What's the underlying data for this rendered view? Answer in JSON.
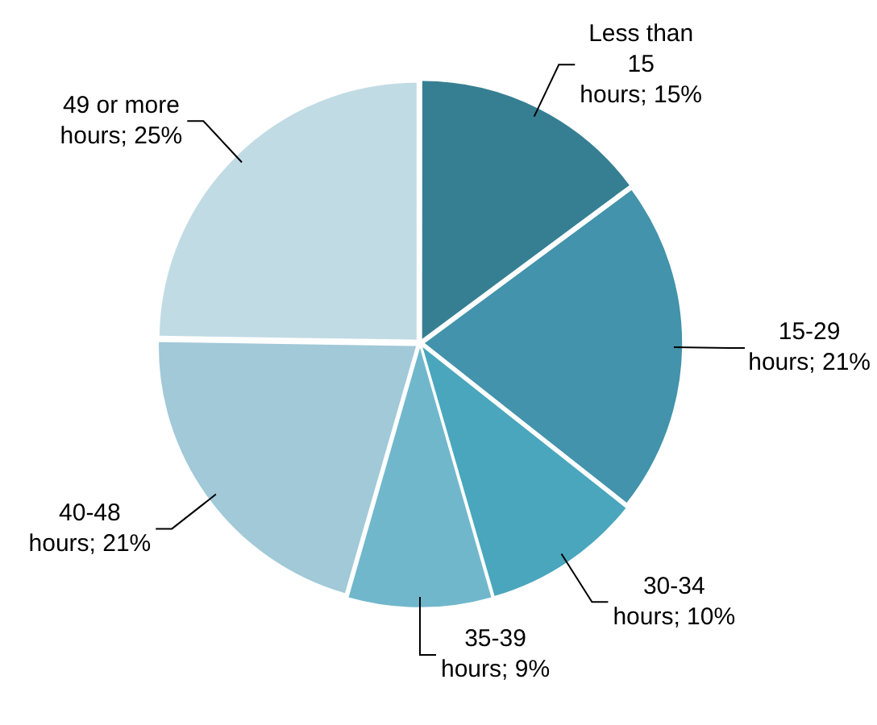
{
  "chart_data": {
    "type": "pie",
    "categories": [
      "Less than 15 hours",
      "15-29 hours",
      "30-34 hours",
      "35-39 hours",
      "40-48 hours",
      "49 or more hours"
    ],
    "values": [
      15,
      21,
      10,
      9,
      21,
      25
    ],
    "value_labels": [
      "15%",
      "21%",
      "10%",
      "9%",
      "21%",
      "25%"
    ],
    "colors": [
      "#367f93",
      "#4293ab",
      "#49a6bd",
      "#71b7cc",
      "#a1c9d8",
      "#c1dbe4"
    ],
    "legend": false
  }
}
